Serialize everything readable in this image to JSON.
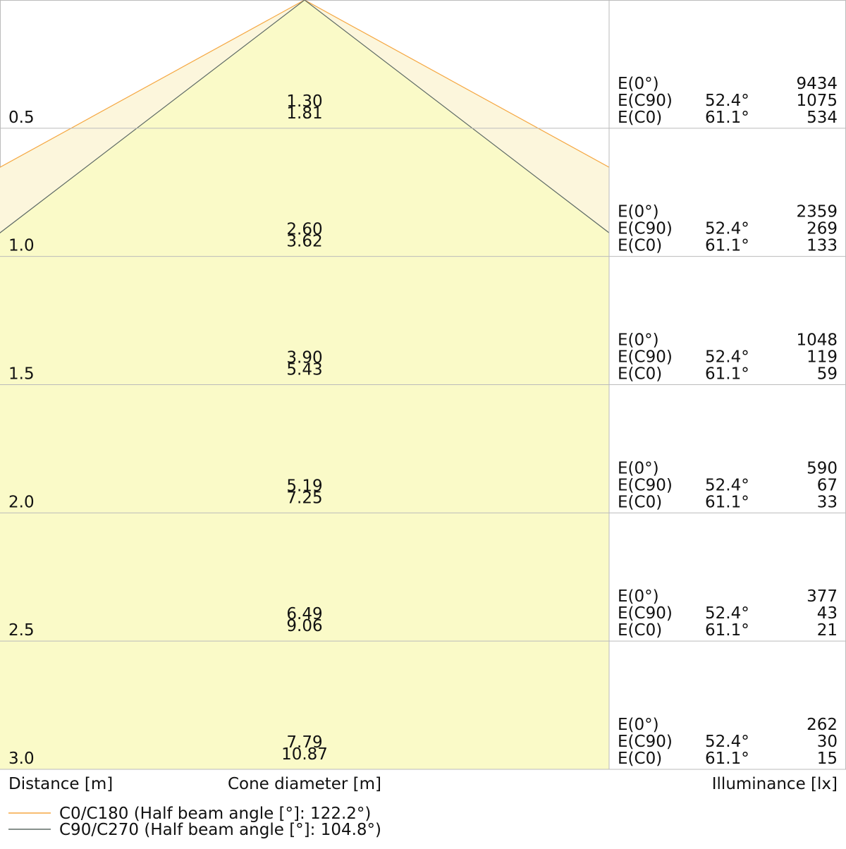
{
  "chart_data": {
    "type": "cone",
    "x_label": "Distance [m]",
    "center_label": "Cone diameter [m]",
    "right_label": "Illuminance [lx]",
    "ylim": [
      0,
      3
    ],
    "yticks": [
      0.5,
      {
        "value": 1,
        "label": "1.0"
      },
      1.5,
      {
        "value": 2,
        "label": "2.0"
      },
      2.5,
      {
        "value": 3,
        "label": "3.0"
      }
    ],
    "series": [
      {
        "name": "C0/C180 (Half beam angle [°]: 122.2°)",
        "color": "#f5a742",
        "fill": "#fcf6dc",
        "values": [
          1.81,
          3.62,
          5.43,
          7.25,
          9.06,
          10.87
        ],
        "value_labels": [
          "1.81",
          "3.62",
          "5.43",
          "7.25",
          "9.06",
          "10.87"
        ]
      },
      {
        "name": "C90/C270 (Half beam angle [°]: 104.8°)",
        "color": "#5f6b66",
        "fill": "#fafac8",
        "values": [
          1.3,
          2.6,
          3.9,
          5.19,
          6.49,
          7.79
        ],
        "value_labels": [
          "1.30",
          "2.60",
          "3.90",
          "5.19",
          "6.49",
          "7.79"
        ]
      }
    ],
    "illuminance": {
      "labels": [
        "E(0°)",
        "E(C90)",
        "E(C0)"
      ],
      "angles": [
        null,
        {
          "value": 52.4,
          "label": "52.4°"
        },
        {
          "value": 61.1,
          "label": "61.1°"
        }
      ],
      "values": [
        [
          9434,
          1075,
          534
        ],
        [
          2359,
          269,
          133
        ],
        [
          1048,
          119,
          59
        ],
        [
          590,
          67,
          33
        ],
        [
          377,
          43,
          21
        ],
        [
          262,
          30,
          15
        ]
      ]
    }
  }
}
